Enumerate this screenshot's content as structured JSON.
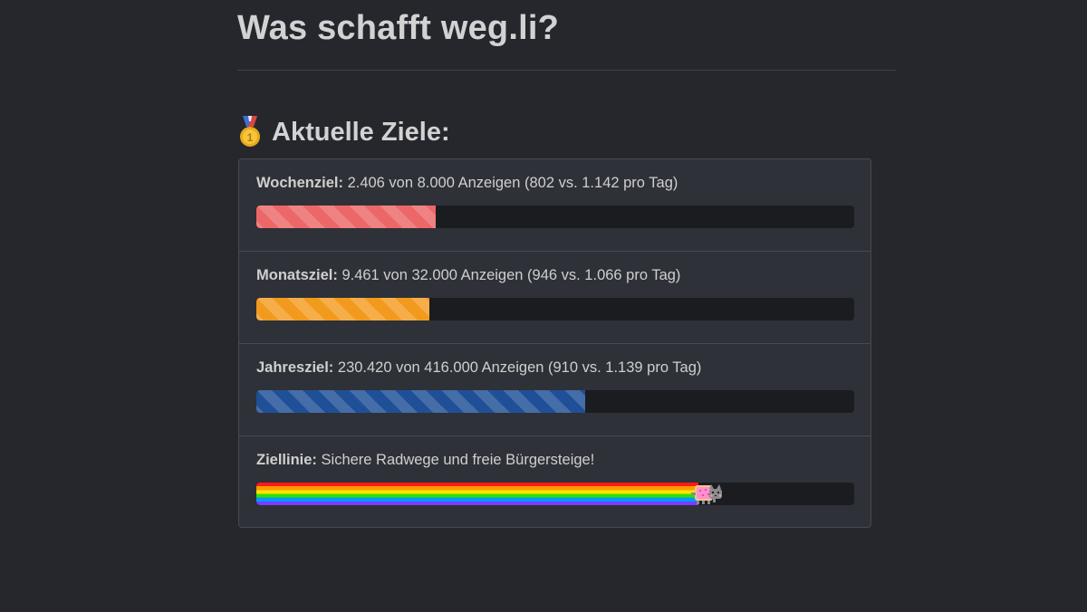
{
  "page": {
    "title": "Was schafft weg.li?"
  },
  "goals_section": {
    "heading": "Aktuelle Ziele:",
    "icon": "medal-icon"
  },
  "goals": [
    {
      "label": "Wochenziel:",
      "text": "2.406 von 8.000 Anzeigen (802 vs. 1.142 pro Tag)",
      "progress_fraction": 0.3,
      "color": "#ec6767"
    },
    {
      "label": "Monatsziel:",
      "text": "9.461 von 32.000 Anzeigen (946 vs. 1.066 pro Tag)",
      "progress_fraction": 0.29,
      "color": "#f29a1d"
    },
    {
      "label": "Jahresziel:",
      "text": "230.420 von 416.000 Anzeigen (910 vs. 1.139 pro Tag)",
      "progress_fraction": 0.55,
      "color": "#1f4f96"
    },
    {
      "label": "Ziellinie:",
      "text": "Sichere Radwege und freie Bürgersteige!",
      "progress_fraction": 0.74,
      "color": "rainbow",
      "icon": "nyan-cat-icon"
    }
  ]
}
